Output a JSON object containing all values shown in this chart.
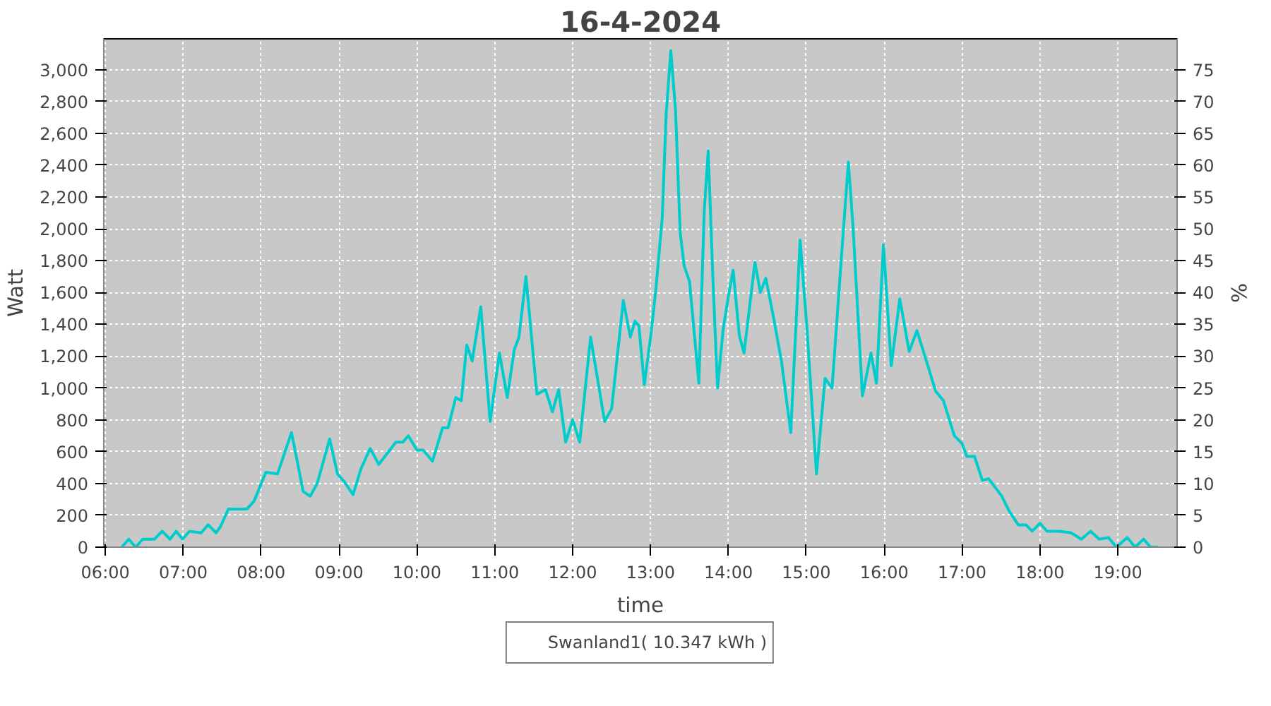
{
  "chart_data": {
    "type": "line",
    "title": "16-4-2024",
    "xlabel": "time",
    "ylabel": "Watt",
    "y2label": "%",
    "x": [
      6.21,
      6.3,
      6.39,
      6.48,
      6.63,
      6.73,
      6.83,
      6.91,
      6.99,
      7.08,
      7.23,
      7.32,
      7.42,
      7.48,
      7.58,
      7.67,
      7.82,
      7.91,
      8.06,
      8.21,
      8.39,
      8.54,
      8.63,
      8.72,
      8.88,
      8.98,
      9.07,
      9.18,
      9.28,
      9.4,
      9.51,
      9.73,
      9.82,
      9.89,
      10.0,
      10.08,
      10.2,
      10.33,
      10.4,
      10.5,
      10.57,
      10.64,
      10.71,
      10.82,
      10.94,
      11.06,
      11.16,
      11.25,
      11.31,
      11.4,
      11.54,
      11.65,
      11.74,
      11.82,
      11.91,
      12.0,
      12.09,
      12.23,
      12.41,
      12.5,
      12.65,
      12.74,
      12.8,
      12.85,
      12.92,
      13.01,
      13.07,
      13.15,
      13.2,
      13.26,
      13.32,
      13.38,
      13.43,
      13.5,
      13.62,
      13.69,
      13.74,
      13.8,
      13.86,
      13.93,
      14.0,
      14.06,
      14.14,
      14.2,
      14.34,
      14.41,
      14.48,
      14.58,
      14.68,
      14.8,
      14.92,
      15.01,
      15.13,
      15.24,
      15.33,
      15.45,
      15.54,
      15.6,
      15.72,
      15.83,
      15.9,
      15.99,
      16.09,
      16.2,
      16.32,
      16.42,
      16.56,
      16.66,
      16.76,
      16.9,
      17.0,
      17.06,
      17.16,
      17.26,
      17.34,
      17.51,
      17.6,
      17.72,
      17.82,
      17.9,
      18.0,
      18.09,
      18.25,
      18.4,
      18.53,
      18.65,
      18.76,
      18.88,
      18.98,
      19.12,
      19.22,
      19.33,
      19.42,
      19.51
    ],
    "series": [
      {
        "name": "Swanland1( 10.347 kWh )",
        "color": "#00cccc",
        "values": [
          0,
          50,
          0,
          50,
          50,
          100,
          50,
          100,
          50,
          100,
          90,
          140,
          90,
          130,
          240,
          240,
          240,
          290,
          470,
          460,
          720,
          350,
          320,
          400,
          680,
          460,
          410,
          330,
          490,
          620,
          520,
          660,
          660,
          700,
          610,
          610,
          540,
          750,
          750,
          940,
          920,
          1270,
          1170,
          1510,
          790,
          1220,
          940,
          1240,
          1320,
          1700,
          960,
          990,
          850,
          990,
          660,
          800,
          660,
          1320,
          790,
          870,
          1550,
          1320,
          1420,
          1390,
          1020,
          1360,
          1630,
          2070,
          2720,
          3120,
          2750,
          1980,
          1770,
          1670,
          1030,
          2120,
          2490,
          1690,
          1000,
          1360,
          1580,
          1740,
          1330,
          1220,
          1790,
          1600,
          1690,
          1440,
          1170,
          720,
          1930,
          1360,
          460,
          1060,
          1000,
          1820,
          2420,
          2010,
          950,
          1220,
          1030,
          1900,
          1140,
          1560,
          1230,
          1360,
          1140,
          980,
          920,
          700,
          650,
          570,
          570,
          420,
          430,
          320,
          230,
          140,
          140,
          100,
          150,
          100,
          100,
          90,
          50,
          100,
          50,
          60,
          0,
          60,
          0,
          50,
          0,
          0
        ]
      }
    ],
    "xlim": [
      5.98,
      19.76
    ],
    "xticks": [
      {
        "value": 6,
        "label": "06:00"
      },
      {
        "value": 7,
        "label": "07:00"
      },
      {
        "value": 8,
        "label": "08:00"
      },
      {
        "value": 9,
        "label": "09:00"
      },
      {
        "value": 10,
        "label": "10:00"
      },
      {
        "value": 11,
        "label": "11:00"
      },
      {
        "value": 12,
        "label": "12:00"
      },
      {
        "value": 13,
        "label": "13:00"
      },
      {
        "value": 14,
        "label": "14:00"
      },
      {
        "value": 15,
        "label": "15:00"
      },
      {
        "value": 16,
        "label": "16:00"
      },
      {
        "value": 17,
        "label": "17:00"
      },
      {
        "value": 18,
        "label": "18:00"
      },
      {
        "value": 19,
        "label": "19:00"
      }
    ],
    "ylim": [
      0,
      3194
    ],
    "yticks": [
      0,
      200,
      400,
      600,
      800,
      {
        "value": 1000,
        "label": "1,000"
      },
      {
        "value": 1200,
        "label": "1,200"
      },
      {
        "value": 1400,
        "label": "1,400"
      },
      {
        "value": 1600,
        "label": "1,600"
      },
      {
        "value": 1800,
        "label": "1,800"
      },
      {
        "value": 2000,
        "label": "2,000"
      },
      {
        "value": 2200,
        "label": "2,200"
      },
      {
        "value": 2400,
        "label": "2,400"
      },
      {
        "value": 2600,
        "label": "2,600"
      },
      {
        "value": 2800,
        "label": "2,800"
      },
      {
        "value": 3000,
        "label": "3,000"
      }
    ],
    "y2lim": [
      0,
      79.85
    ],
    "y2ticks": [
      0,
      5,
      10,
      15,
      20,
      25,
      30,
      35,
      40,
      45,
      50,
      55,
      60,
      65,
      70,
      75
    ],
    "grid": true,
    "legend": "bottom",
    "marker": "none",
    "line_style": "solid"
  }
}
